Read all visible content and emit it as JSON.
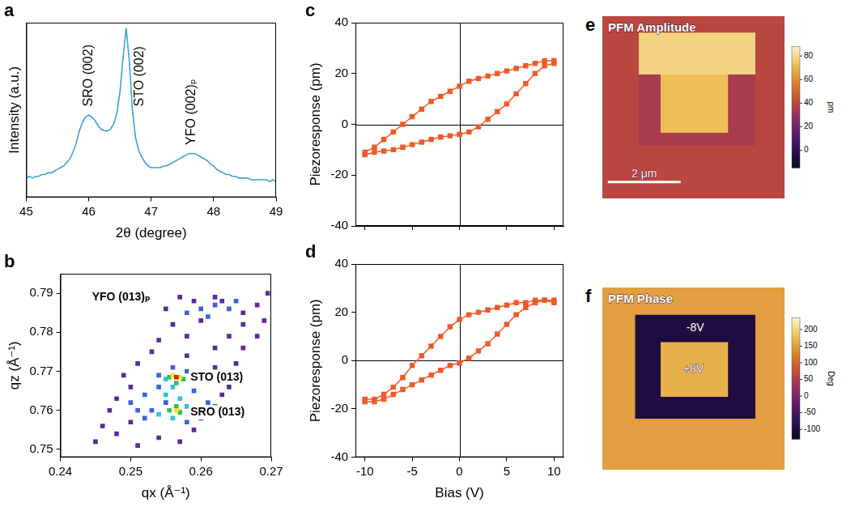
{
  "chart_data": [
    {
      "panel": "a",
      "type": "line",
      "x": [
        45.0,
        45.05,
        45.1,
        45.15,
        45.2,
        45.25,
        45.3,
        45.35,
        45.4,
        45.45,
        45.5,
        45.55,
        45.6,
        45.65,
        45.7,
        45.75,
        45.8,
        45.85,
        45.9,
        45.95,
        46.0,
        46.05,
        46.1,
        46.15,
        46.2,
        46.25,
        46.3,
        46.35,
        46.4,
        46.45,
        46.5,
        46.55,
        46.6,
        46.65,
        46.7,
        46.75,
        46.8,
        46.85,
        46.9,
        46.95,
        47.0,
        47.05,
        47.1,
        47.15,
        47.2,
        47.25,
        47.3,
        47.35,
        47.4,
        47.45,
        47.5,
        47.55,
        47.6,
        47.65,
        47.7,
        47.75,
        47.8,
        47.85,
        47.9,
        47.95,
        48.0,
        48.05,
        48.1,
        48.15,
        48.2,
        48.25,
        48.3,
        48.35,
        48.4,
        48.45,
        48.5,
        48.55,
        48.6,
        48.65,
        48.7,
        48.75,
        48.8,
        48.85,
        48.9,
        48.95,
        49.0
      ],
      "values": [
        11,
        12,
        11,
        12,
        12,
        13,
        13,
        14,
        14,
        15,
        16,
        17,
        18,
        20,
        22,
        26,
        31,
        38,
        43,
        46,
        47,
        46,
        44,
        41,
        39,
        38,
        38,
        39,
        42,
        48,
        60,
        80,
        97,
        78,
        50,
        34,
        27,
        23,
        20,
        18,
        17,
        17,
        17,
        17,
        18,
        18,
        19,
        20,
        21,
        22,
        23,
        24,
        25,
        25,
        25,
        24,
        23,
        22,
        21,
        19,
        18,
        16,
        15,
        14,
        13,
        13,
        12,
        12,
        11,
        11,
        11,
        11,
        10,
        10,
        10,
        10,
        10,
        10,
        9,
        10,
        9
      ],
      "color": "#3ba3d6",
      "xlabel": "2θ (degree)",
      "ylabel": "Intensity (a.u.)",
      "xlim": [
        45,
        49
      ],
      "xticks": [
        45,
        46,
        47,
        48,
        49
      ],
      "ylim": [
        0,
        100
      ],
      "tick_labels": "x",
      "grid": false,
      "annotations": [
        {
          "text": "SRO (002)",
          "x": 46.0,
          "y": 52
        },
        {
          "text": "STO (002)",
          "x": 46.82,
          "y": 52
        },
        {
          "text": "YFO (002)ₚ",
          "x": 47.65,
          "y": 30
        }
      ]
    },
    {
      "panel": "b",
      "type": "map",
      "points": [
        [
          0.245,
          0.752,
          1
        ],
        [
          0.248,
          0.754,
          1
        ],
        [
          0.251,
          0.751,
          1
        ],
        [
          0.254,
          0.753,
          1
        ],
        [
          0.257,
          0.752,
          1
        ],
        [
          0.246,
          0.756,
          1
        ],
        [
          0.25,
          0.757,
          1
        ],
        [
          0.259,
          0.755,
          1
        ],
        [
          0.247,
          0.76,
          1
        ],
        [
          0.26,
          0.758,
          1
        ],
        [
          0.262,
          0.761,
          1
        ],
        [
          0.248,
          0.763,
          1
        ],
        [
          0.263,
          0.764,
          1
        ],
        [
          0.25,
          0.766,
          1
        ],
        [
          0.264,
          0.766,
          1
        ],
        [
          0.249,
          0.769,
          1
        ],
        [
          0.262,
          0.771,
          1
        ],
        [
          0.251,
          0.772,
          1
        ],
        [
          0.265,
          0.772,
          1
        ],
        [
          0.253,
          0.775,
          1
        ],
        [
          0.258,
          0.774,
          1
        ],
        [
          0.262,
          0.776,
          1
        ],
        [
          0.266,
          0.776,
          1
        ],
        [
          0.254,
          0.778,
          1
        ],
        [
          0.258,
          0.779,
          1
        ],
        [
          0.264,
          0.779,
          1
        ],
        [
          0.268,
          0.779,
          1
        ],
        [
          0.256,
          0.782,
          1
        ],
        [
          0.266,
          0.782,
          1
        ],
        [
          0.269,
          0.783,
          1
        ],
        [
          0.255,
          0.786,
          1
        ],
        [
          0.268,
          0.787,
          1
        ],
        [
          0.257,
          0.789,
          1
        ],
        [
          0.2695,
          0.79,
          1
        ],
        [
          0.258,
          0.785,
          2
        ],
        [
          0.26,
          0.786,
          2
        ],
        [
          0.262,
          0.787,
          2
        ],
        [
          0.264,
          0.786,
          2
        ],
        [
          0.261,
          0.784,
          2
        ],
        [
          0.263,
          0.788,
          1
        ],
        [
          0.259,
          0.788,
          1
        ],
        [
          0.265,
          0.788,
          2
        ],
        [
          0.26,
          0.783,
          1
        ],
        [
          0.266,
          0.785,
          1
        ],
        [
          0.262,
          0.789,
          1
        ],
        [
          0.25,
          0.762,
          2
        ],
        [
          0.252,
          0.764,
          2
        ],
        [
          0.253,
          0.76,
          2
        ],
        [
          0.254,
          0.766,
          2
        ],
        [
          0.255,
          0.762,
          2
        ],
        [
          0.252,
          0.758,
          2
        ],
        [
          0.258,
          0.757,
          2
        ],
        [
          0.259,
          0.765,
          2
        ],
        [
          0.26,
          0.769,
          2
        ],
        [
          0.261,
          0.762,
          2
        ],
        [
          0.256,
          0.771,
          2
        ],
        [
          0.258,
          0.77,
          2
        ],
        [
          0.254,
          0.769,
          2
        ],
        [
          0.251,
          0.76,
          2
        ],
        [
          0.254,
          0.759,
          3
        ],
        [
          0.255,
          0.764,
          3
        ],
        [
          0.256,
          0.766,
          3
        ],
        [
          0.258,
          0.761,
          3
        ],
        [
          0.259,
          0.768,
          3
        ],
        [
          0.257,
          0.763,
          3
        ],
        [
          0.256,
          0.758,
          3
        ],
        [
          0.255,
          0.768,
          3
        ],
        [
          0.2555,
          0.76,
          4
        ],
        [
          0.257,
          0.7595,
          4
        ],
        [
          0.2565,
          0.761,
          4
        ],
        [
          0.2575,
          0.768,
          4
        ],
        [
          0.2555,
          0.7685,
          4
        ],
        [
          0.2565,
          0.767,
          4
        ],
        [
          0.2565,
          0.76,
          5
        ],
        [
          0.257,
          0.7685,
          5
        ],
        [
          0.256,
          0.769,
          5
        ],
        [
          0.2565,
          0.7685,
          6
        ]
      ],
      "xlabel": "qx (Å⁻¹)",
      "ylabel": "qz (Å⁻¹)",
      "xlim": [
        0.24,
        0.27
      ],
      "xticks": [
        0.24,
        0.25,
        0.26,
        0.27
      ],
      "ylim": [
        0.748,
        0.795
      ],
      "yticks": [
        0.75,
        0.76,
        0.77,
        0.78,
        0.79
      ],
      "grid": false,
      "annotations": [
        {
          "text": "YFO (013)ₚ",
          "x": 0.2445,
          "y": 0.789
        },
        {
          "text": "STO (013)",
          "x": 0.2585,
          "y": 0.7685
        },
        {
          "text": "SRO (013)",
          "x": 0.2585,
          "y": 0.7595
        }
      ]
    },
    {
      "panel": "c",
      "type": "scatter",
      "x": [
        10,
        9,
        8,
        7,
        6,
        5,
        4,
        3,
        2,
        1,
        0,
        -1,
        -2,
        -3,
        -4,
        -5,
        -6,
        -7,
        -8,
        -9,
        -10,
        -10,
        -9,
        -8,
        -7,
        -6,
        -5,
        -4,
        -3,
        -2,
        -1,
        0,
        1,
        2,
        3,
        4,
        5,
        6,
        7,
        8,
        9,
        10
      ],
      "values": [
        25,
        25,
        24,
        23,
        22,
        21,
        20,
        19,
        18,
        17,
        15,
        13,
        11,
        9,
        6,
        3,
        0,
        -3,
        -6,
        -9,
        -11,
        -12,
        -11,
        -10.5,
        -10,
        -9,
        -8,
        -7,
        -6,
        -5,
        -4.5,
        -4,
        -3,
        -1,
        2,
        5,
        8,
        12,
        16,
        20,
        23,
        24
      ],
      "color": "#f05a28",
      "marker": "square",
      "line_style": "solid",
      "ylabel": "Piezoresponse (pm)",
      "xlim": [
        -11,
        11
      ],
      "xticks": [
        -10,
        -5,
        0,
        5,
        10
      ],
      "ylim": [
        -40,
        40
      ],
      "yticks": [
        -40,
        -20,
        0,
        20,
        40
      ],
      "hlines": [
        0
      ],
      "vlines": [
        0
      ],
      "tick_labels": "y",
      "grid": false
    },
    {
      "panel": "d",
      "type": "scatter",
      "x": [
        10,
        9,
        8,
        7,
        6,
        5,
        4,
        3,
        2,
        1,
        0,
        -1,
        -2,
        -3,
        -4,
        -5,
        -6,
        -7,
        -8,
        -9,
        -10,
        -10,
        -9,
        -8,
        -7,
        -6,
        -5,
        -4,
        -3,
        -2,
        -1,
        0,
        1,
        2,
        3,
        4,
        5,
        6,
        7,
        8,
        9,
        10
      ],
      "values": [
        24,
        25,
        25,
        24,
        24,
        23,
        22,
        21,
        20,
        19,
        17,
        14,
        10,
        6,
        2,
        -2,
        -7,
        -11,
        -14,
        -16,
        -16,
        -17,
        -17,
        -16,
        -14,
        -12,
        -10,
        -8,
        -6,
        -4,
        -2,
        -1,
        1,
        4,
        7,
        11,
        15,
        19,
        22,
        24,
        25,
        25
      ],
      "color": "#f05a28",
      "marker": "square",
      "line_style": "solid",
      "xlabel": "Bias (V)",
      "ylabel": "Piezoresponse (pm)",
      "xlim": [
        -11,
        11
      ],
      "xticks": [
        -10,
        -5,
        0,
        5,
        10
      ],
      "ylim": [
        -40,
        40
      ],
      "yticks": [
        -40,
        -20,
        0,
        20,
        40
      ],
      "hlines": [
        0
      ],
      "vlines": [
        0
      ],
      "grid": false
    },
    {
      "panel": "e",
      "type": "image",
      "title": "PFM Amplitude",
      "extent": 5,
      "background": 40,
      "regions": [
        {
          "x0": 1.0,
          "y0": 0.45,
          "x1": 4.2,
          "y1": 3.55,
          "value": 35
        },
        {
          "x0": 1.0,
          "y0": 0.45,
          "x1": 4.2,
          "y1": 1.6,
          "value": 78
        },
        {
          "x0": 1.6,
          "y0": 1.6,
          "x1": 3.45,
          "y1": 3.2,
          "value": 72
        }
      ],
      "colorbar": {
        "range": [
          -15,
          88
        ],
        "ticks": [
          0,
          20,
          40,
          60,
          80
        ],
        "label": "pm"
      },
      "scale_bar": {
        "length": 2,
        "label": "2 μm",
        "x": 0.15,
        "y": 4.55
      },
      "annotations": []
    },
    {
      "panel": "f",
      "type": "image",
      "title": "PFM Phase",
      "extent": 5,
      "background": 150,
      "regions": [
        {
          "x0": 0.9,
          "y0": 0.75,
          "x1": 4.2,
          "y1": 3.6,
          "value": -100
        },
        {
          "x0": 1.6,
          "y0": 1.5,
          "x1": 3.45,
          "y1": 3.0,
          "value": 165
        }
      ],
      "colorbar": {
        "range": [
          -130,
          235
        ],
        "ticks": [
          -100,
          -50,
          0,
          50,
          100,
          150,
          200
        ],
        "label": "Deg"
      },
      "annotations": [
        {
          "text": "-8V",
          "x": 2.55,
          "y": 1.12
        },
        {
          "text": "+8V",
          "x": 2.5,
          "y": 2.25
        }
      ]
    }
  ]
}
